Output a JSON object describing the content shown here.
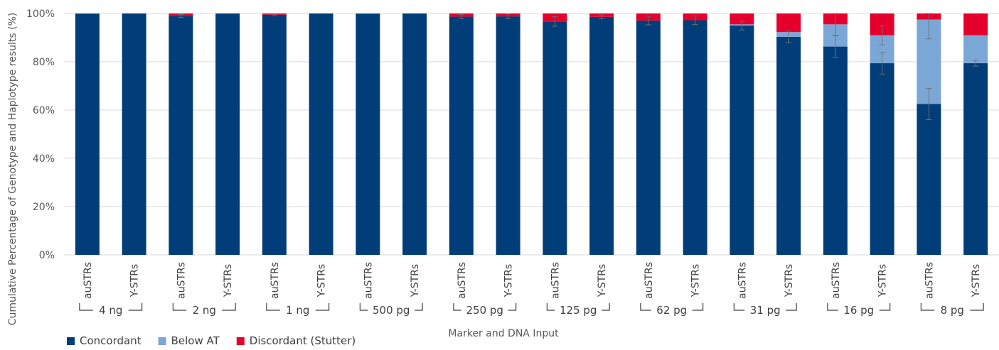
{
  "chart_data": {
    "type": "bar",
    "stacked": true,
    "ylabel": "Cumulative Percentage of Genotype and Haplotype results (%)",
    "xlabel": "Marker and DNA Input",
    "y_ticks": [
      "0%",
      "20%",
      "40%",
      "60%",
      "80%",
      "100%"
    ],
    "ylim": [
      0,
      100
    ],
    "grid": true,
    "legend_position": "bottom-left",
    "categories": [
      "auSTRs",
      "Y-STRs",
      "auSTRs",
      "Y-STRs",
      "auSTRs",
      "Y-STRs",
      "auSTRs",
      "Y-STRs",
      "auSTRs",
      "Y-STRs",
      "auSTRs",
      "Y-STRs",
      "auSTRs",
      "Y-STRs",
      "auSTRs",
      "Y-STRs",
      "auSTRs",
      "Y-STRs",
      "auSTRs",
      "Y-STRs"
    ],
    "groups": [
      "4 ng",
      "2 ng",
      "1 ng",
      "500 pg",
      "250 pg",
      "125 pg",
      "62 pg",
      "31 pg",
      "16 pg",
      "8 pg"
    ],
    "series": [
      {
        "name": "Concordant",
        "color": "#003d79",
        "values": [
          99.9,
          100,
          99.0,
          100,
          99.5,
          100,
          99.9,
          100,
          98.7,
          98.8,
          96.7,
          98.6,
          97.1,
          97.2,
          95.0,
          90.3,
          86.3,
          79.4,
          62.5,
          79.4
        ],
        "errors": [
          0,
          0,
          0.6,
          0,
          0.4,
          0,
          0,
          0,
          0.8,
          1.0,
          2.0,
          0.8,
          1.8,
          1.8,
          1.8,
          2.4,
          4.5,
          4.5,
          6.5,
          1.2
        ]
      },
      {
        "name": "Below AT",
        "color": "#7ba7d7",
        "values": [
          0,
          0,
          0,
          0,
          0,
          0,
          0,
          0,
          0,
          0,
          0,
          0,
          0,
          0,
          0.5,
          2.0,
          9.2,
          11.6,
          35.0,
          11.6
        ],
        "errors": [
          0,
          0,
          0,
          0,
          0,
          0,
          0,
          0,
          0,
          0,
          0,
          0,
          0,
          0,
          0,
          0,
          4.5,
          4.0,
          8.0,
          0
        ]
      },
      {
        "name": "Discordant (Stutter)",
        "color": "#e4002b",
        "values": [
          0.1,
          0,
          1.0,
          0,
          0.5,
          0,
          0.1,
          0,
          1.3,
          1.2,
          3.3,
          1.4,
          2.9,
          2.8,
          4.5,
          7.7,
          4.5,
          9.0,
          2.5,
          9.0
        ],
        "errors": [
          0,
          0,
          0,
          0,
          0,
          0,
          0,
          0,
          0,
          0,
          0,
          0,
          0,
          0,
          0,
          0,
          0,
          0,
          0,
          0
        ]
      }
    ]
  }
}
